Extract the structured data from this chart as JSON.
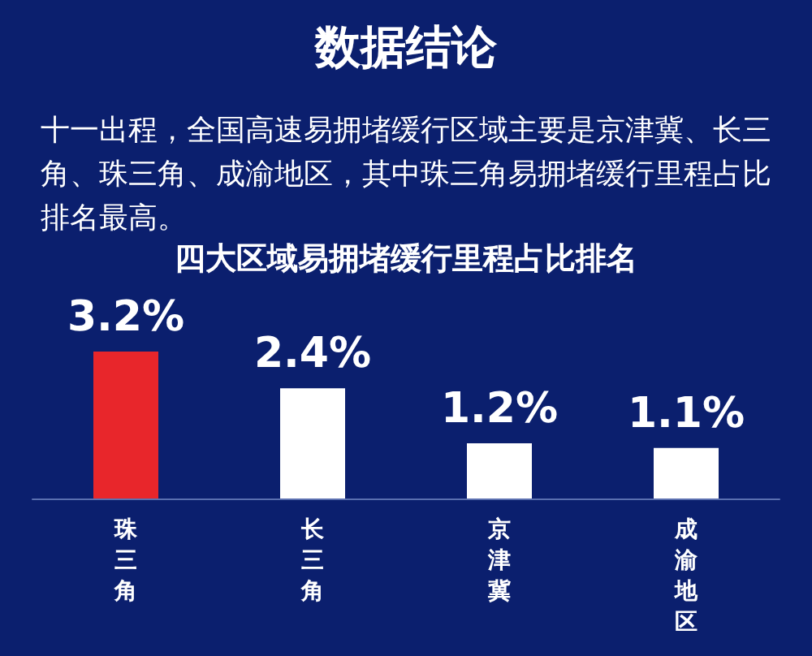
{
  "chart_data": {
    "type": "bar",
    "title": "数据结论",
    "subtitle": "十一出程，全国高速易拥堵缓行区域主要是京津冀、长三角、珠三角、成渝地区，其中珠三角易拥堵缓行里程占比排名最高。",
    "annotations": [
      "四大区域易拥堵缓行里程占比排名"
    ],
    "categories": [
      "珠三角",
      "长三角",
      "京津冀",
      "成渝地区"
    ],
    "values": [
      3.2,
      2.4,
      1.2,
      1.1
    ],
    "value_labels": [
      "3.2%",
      "2.4%",
      "1.2%",
      "1.1%"
    ],
    "colors": [
      "#e8262b",
      "#ffffff",
      "#ffffff",
      "#ffffff"
    ]
  }
}
